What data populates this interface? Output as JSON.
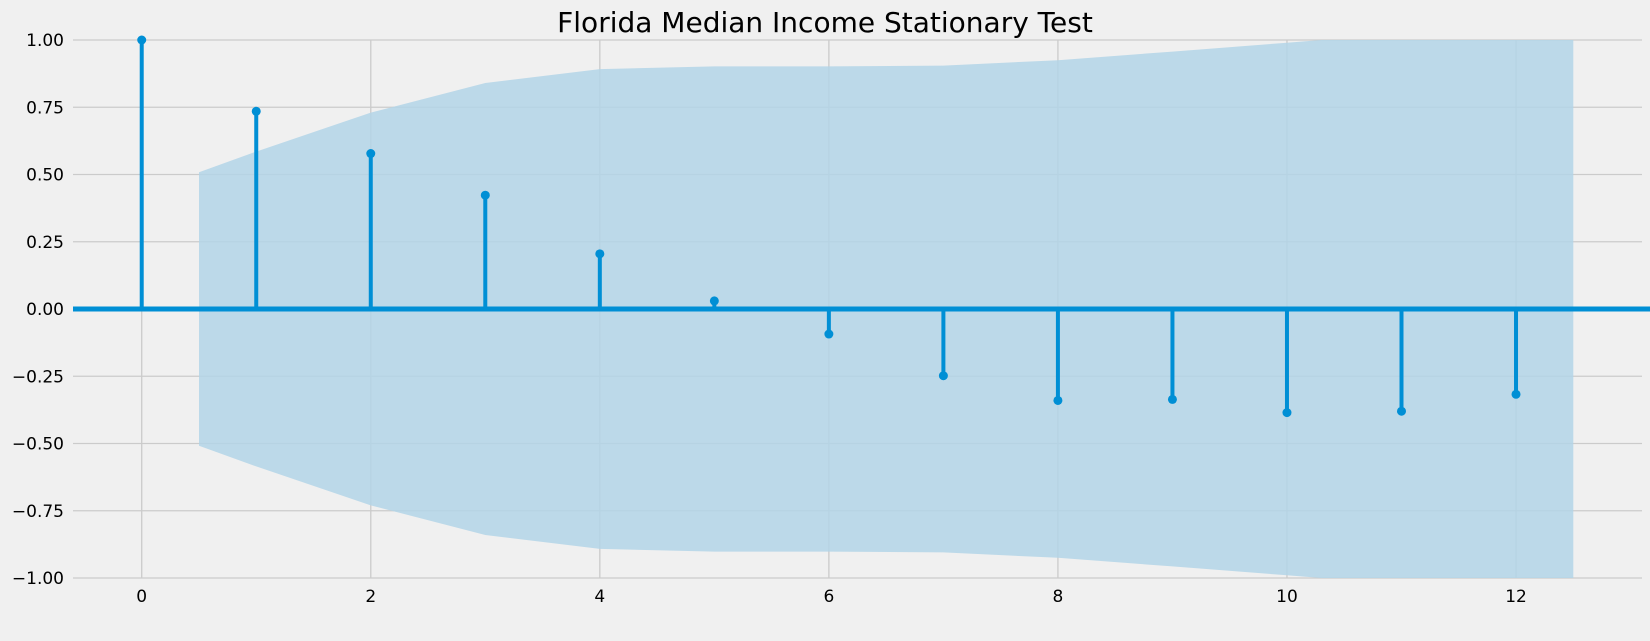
{
  "chart_data": {
    "type": "stem",
    "title": "Florida Median Income Stationary Test",
    "xlabel": "",
    "ylabel": "",
    "xlim": [
      -0.6,
      13.1
    ],
    "ylim": [
      -1.0,
      1.0
    ],
    "x_ticks": [
      0,
      2,
      4,
      6,
      8,
      10,
      12
    ],
    "x_tick_labels": [
      "0",
      "2",
      "4",
      "6",
      "8",
      "10",
      "12"
    ],
    "y_ticks": [
      1.0,
      0.75,
      0.5,
      0.25,
      0.0,
      -0.25,
      -0.5,
      -0.75,
      -1.0
    ],
    "y_tick_labels": [
      "1.00",
      "0.75",
      "0.50",
      "0.25",
      "0.00",
      "−0.25",
      "−0.50",
      "−0.75",
      "−1.00"
    ],
    "grid": true,
    "series": [
      {
        "x": [
          0,
          1,
          2,
          3,
          4,
          5,
          6,
          7,
          8,
          9,
          10,
          11,
          12
        ],
        "values": [
          1.0,
          0.735,
          0.578,
          0.423,
          0.205,
          0.03,
          -0.093,
          -0.248,
          -0.34,
          -0.336,
          -0.385,
          -0.38,
          -0.317
        ]
      }
    ],
    "confidence_band": {
      "x": [
        0.5,
        1,
        2,
        3,
        4,
        5,
        6,
        7,
        8,
        9,
        10,
        10.3,
        11,
        12,
        12.5
      ],
      "upper": [
        0.508,
        0.585,
        0.73,
        0.84,
        0.892,
        0.902,
        0.902,
        0.905,
        0.925,
        0.957,
        0.99,
        1.0,
        1.0,
        1.0,
        1.0
      ]
    },
    "colors": {
      "stem": "#008fd5",
      "band": "#b3d5e7",
      "grid": "#cbcbcb",
      "background": "#f0f0f0"
    }
  }
}
